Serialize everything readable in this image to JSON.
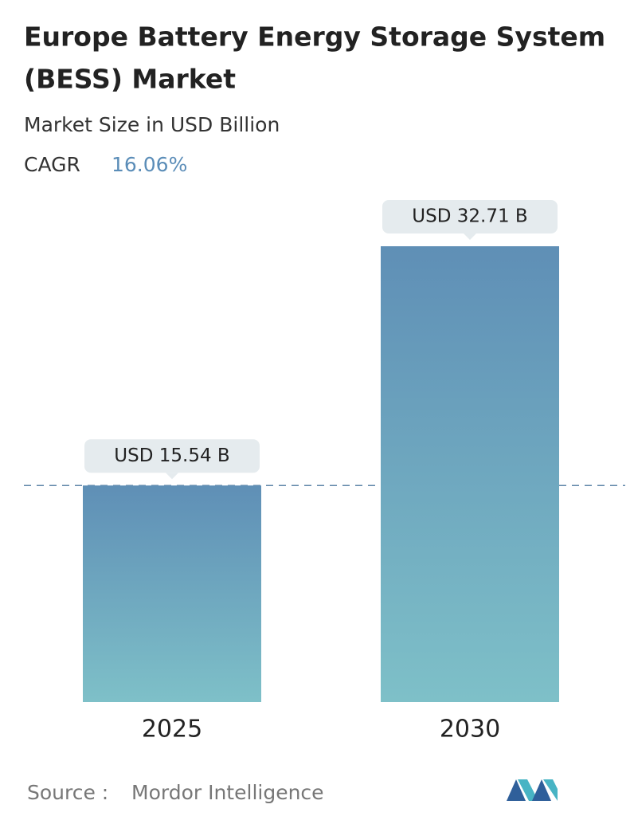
{
  "chart_data": {
    "type": "bar",
    "title": [
      "Europe Battery Energy Storage System",
      "(BESS) Market"
    ],
    "subtitle": "Market Size in USD Billion",
    "cagr_label": "CAGR",
    "cagr_value": "16.06%",
    "categories": [
      "2025",
      "2030"
    ],
    "values": [
      15.54,
      32.71
    ],
    "value_labels": [
      "USD 15.54 B",
      "USD 32.71 B"
    ],
    "source_label": "Source :",
    "source": "Mordor Intelligence"
  }
}
